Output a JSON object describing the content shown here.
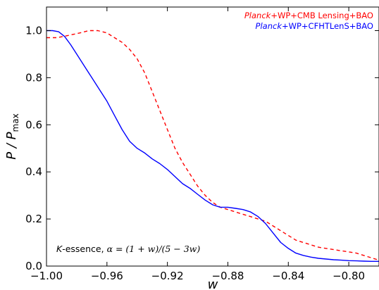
{
  "chart_data": {
    "type": "line",
    "xlabel": "w",
    "ylabel": "P / P",
    "ylabel_sub": "max",
    "xlim": [
      -1.0,
      -0.78
    ],
    "ylim": [
      0.0,
      1.1
    ],
    "xticks": [
      -1.0,
      -0.96,
      -0.92,
      -0.88,
      -0.84,
      -0.8
    ],
    "xtick_labels": [
      "−1.00",
      "−0.96",
      "−0.92",
      "−0.88",
      "−0.84",
      "−0.80"
    ],
    "yticks": [
      0.0,
      0.2,
      0.4,
      0.6,
      0.8,
      1.0
    ],
    "ytick_labels": [
      "0.0",
      "0.2",
      "0.4",
      "0.6",
      "0.8",
      "1.0"
    ],
    "grid": false,
    "legend_position": "top-right",
    "annotation": {
      "prefix_italic": "K",
      "prefix_rest": "-essence, ",
      "formula": "α = (1 + w)/(5 − 3w)"
    },
    "series": [
      {
        "name_italic": "Planck",
        "name_rest": "+WP+CMB Lensing+BAO",
        "color": "#ff0000",
        "style": "dashed",
        "x": [
          -1.0,
          -0.993,
          -0.985,
          -0.978,
          -0.972,
          -0.966,
          -0.96,
          -0.955,
          -0.95,
          -0.945,
          -0.94,
          -0.935,
          -0.93,
          -0.925,
          -0.92,
          -0.915,
          -0.91,
          -0.905,
          -0.9,
          -0.895,
          -0.89,
          -0.885,
          -0.88,
          -0.875,
          -0.87,
          -0.865,
          -0.86,
          -0.855,
          -0.85,
          -0.845,
          -0.84,
          -0.835,
          -0.83,
          -0.825,
          -0.82,
          -0.815,
          -0.81,
          -0.805,
          -0.8,
          -0.795,
          -0.79,
          -0.785,
          -0.78
        ],
        "y": [
          0.97,
          0.97,
          0.98,
          0.99,
          1.0,
          1.0,
          0.99,
          0.97,
          0.95,
          0.92,
          0.88,
          0.82,
          0.74,
          0.66,
          0.58,
          0.5,
          0.44,
          0.39,
          0.34,
          0.3,
          0.27,
          0.25,
          0.24,
          0.23,
          0.22,
          0.21,
          0.2,
          0.19,
          0.17,
          0.15,
          0.13,
          0.11,
          0.1,
          0.09,
          0.08,
          0.075,
          0.07,
          0.065,
          0.06,
          0.055,
          0.045,
          0.035,
          0.025
        ]
      },
      {
        "name_italic": "Planck",
        "name_rest": "+WP+CFHTLenS+BAO",
        "color": "#0000ff",
        "style": "solid",
        "x": [
          -1.0,
          -0.996,
          -0.992,
          -0.988,
          -0.984,
          -0.98,
          -0.975,
          -0.97,
          -0.965,
          -0.96,
          -0.955,
          -0.95,
          -0.945,
          -0.94,
          -0.935,
          -0.93,
          -0.925,
          -0.92,
          -0.915,
          -0.91,
          -0.905,
          -0.9,
          -0.895,
          -0.89,
          -0.885,
          -0.88,
          -0.875,
          -0.87,
          -0.865,
          -0.86,
          -0.855,
          -0.85,
          -0.845,
          -0.84,
          -0.835,
          -0.83,
          -0.825,
          -0.82,
          -0.815,
          -0.81,
          -0.805,
          -0.8,
          -0.795,
          -0.79,
          -0.785,
          -0.78
        ],
        "y": [
          1.0,
          1.0,
          0.995,
          0.975,
          0.94,
          0.9,
          0.85,
          0.8,
          0.75,
          0.7,
          0.64,
          0.58,
          0.53,
          0.5,
          0.48,
          0.455,
          0.435,
          0.41,
          0.38,
          0.35,
          0.33,
          0.305,
          0.28,
          0.26,
          0.25,
          0.25,
          0.245,
          0.24,
          0.23,
          0.21,
          0.18,
          0.14,
          0.1,
          0.075,
          0.055,
          0.045,
          0.038,
          0.033,
          0.03,
          0.027,
          0.025,
          0.023,
          0.022,
          0.021,
          0.02,
          0.02
        ]
      }
    ]
  }
}
